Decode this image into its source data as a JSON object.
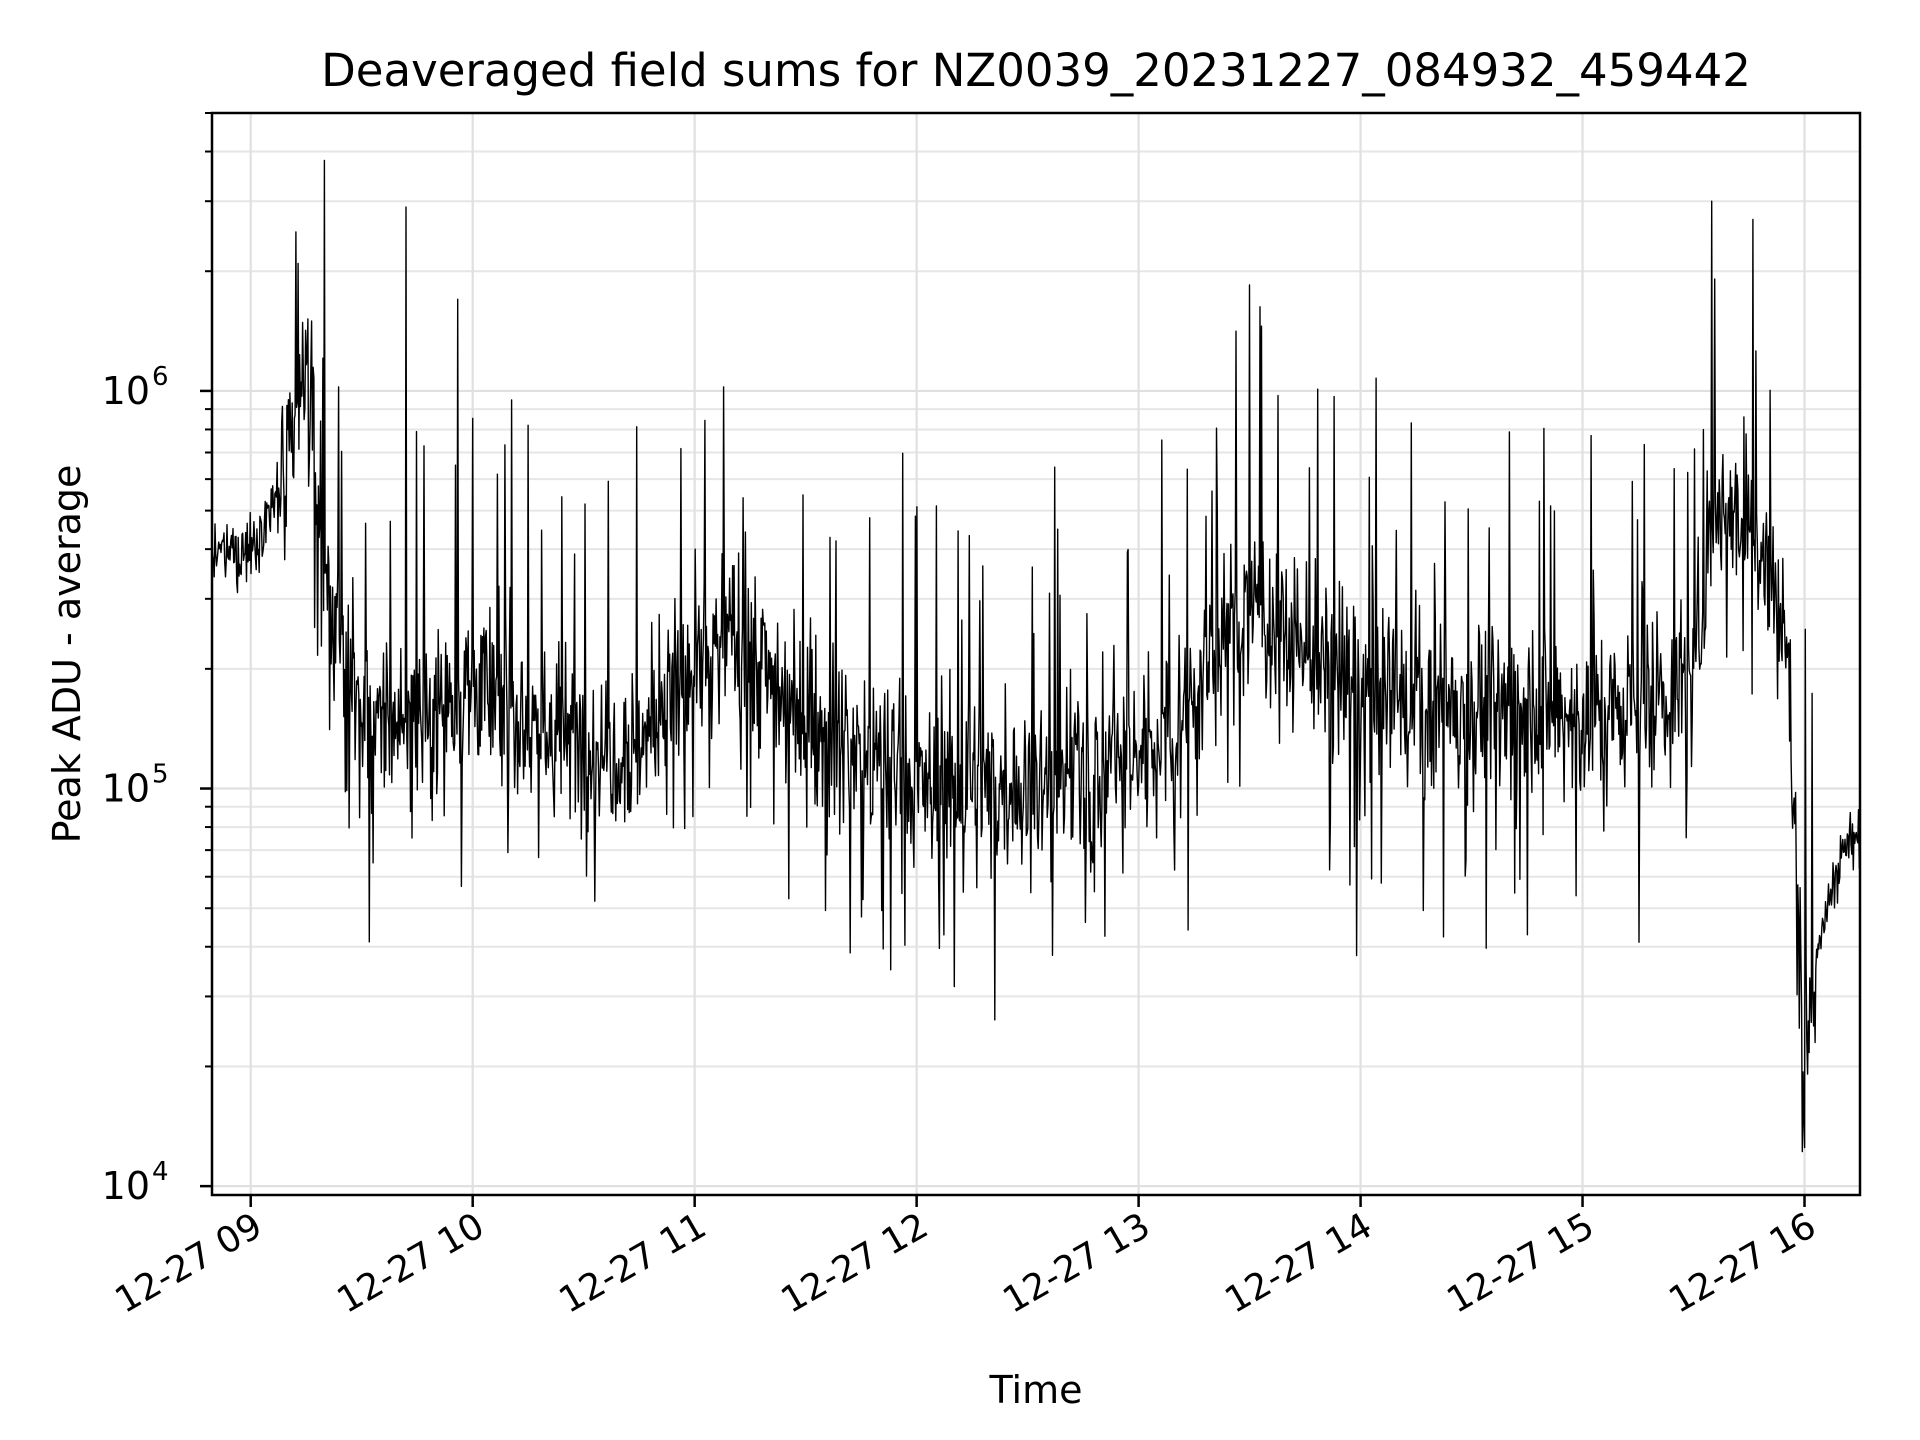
{
  "chart_data": {
    "type": "line",
    "title": "Deaveraged field sums for NZ0039_20231227_084932_459442",
    "xlabel": "Time",
    "ylabel": "Peak ADU - average",
    "yscale": "log",
    "ylim": [
      9500,
      5000000
    ],
    "xlim": [
      "2023-12-27 08:49:32",
      "2023-12-27 16:15:00"
    ],
    "grid": true,
    "line_color": "#000000",
    "x_ticks": [
      {
        "value": "2023-12-27 09:00",
        "label": "12-27 09"
      },
      {
        "value": "2023-12-27 10:00",
        "label": "12-27 10"
      },
      {
        "value": "2023-12-27 11:00",
        "label": "12-27 11"
      },
      {
        "value": "2023-12-27 12:00",
        "label": "12-27 12"
      },
      {
        "value": "2023-12-27 13:00",
        "label": "12-27 13"
      },
      {
        "value": "2023-12-27 14:00",
        "label": "12-27 14"
      },
      {
        "value": "2023-12-27 15:00",
        "label": "12-27 15"
      },
      {
        "value": "2023-12-27 16:00",
        "label": "12-27 16"
      }
    ],
    "y_ticks": [
      {
        "value": 10000,
        "base": "10",
        "exp": "4"
      },
      {
        "value": 100000,
        "base": "10",
        "exp": "5"
      },
      {
        "value": 1000000,
        "base": "10",
        "exp": "6"
      }
    ],
    "series": [
      {
        "x": [
          "2023-12-27 08:50",
          "2023-12-27 09:00",
          "2023-12-27 09:10",
          "2023-12-27 09:15",
          "2023-12-27 09:20",
          "2023-12-27 09:30",
          "2023-12-27 09:45",
          "2023-12-27 10:00",
          "2023-12-27 10:15",
          "2023-12-27 10:30",
          "2023-12-27 10:45",
          "2023-12-27 11:00",
          "2023-12-27 11:10",
          "2023-12-27 11:30",
          "2023-12-27 12:00",
          "2023-12-27 12:30",
          "2023-12-27 13:00",
          "2023-12-27 13:15",
          "2023-12-27 13:30",
          "2023-12-27 14:00",
          "2023-12-27 14:30",
          "2023-12-27 15:00",
          "2023-12-27 15:30",
          "2023-12-27 15:35",
          "2023-12-27 15:45",
          "2023-12-27 15:55",
          "2023-12-27 16:00",
          "2023-12-27 16:05",
          "2023-12-27 16:10",
          "2023-12-27 16:15"
        ],
        "y": [
          380000,
          400000,
          600000,
          1100000,
          350000,
          140000,
          150000,
          180000,
          150000,
          130000,
          130000,
          200000,
          250000,
          150000,
          100000,
          100000,
          120000,
          170000,
          300000,
          170000,
          160000,
          150000,
          180000,
          550000,
          500000,
          250000,
          25000,
          45000,
          70000,
          75000
        ],
        "peaks": [
          {
            "x": "2023-12-27 09:20",
            "y": 3800000
          },
          {
            "x": "2023-12-27 09:42",
            "y": 2900000
          },
          {
            "x": "2023-12-27 09:56",
            "y": 1700000
          },
          {
            "x": "2023-12-27 15:35",
            "y": 3000000
          },
          {
            "x": "2023-12-27 15:46",
            "y": 2700000
          }
        ],
        "troughs": [
          {
            "x": "2023-12-27 11:53",
            "y": 35000
          },
          {
            "x": "2023-12-27 13:59",
            "y": 38000
          },
          {
            "x": "2023-12-27 16:00",
            "y": 12500
          }
        ]
      }
    ]
  }
}
